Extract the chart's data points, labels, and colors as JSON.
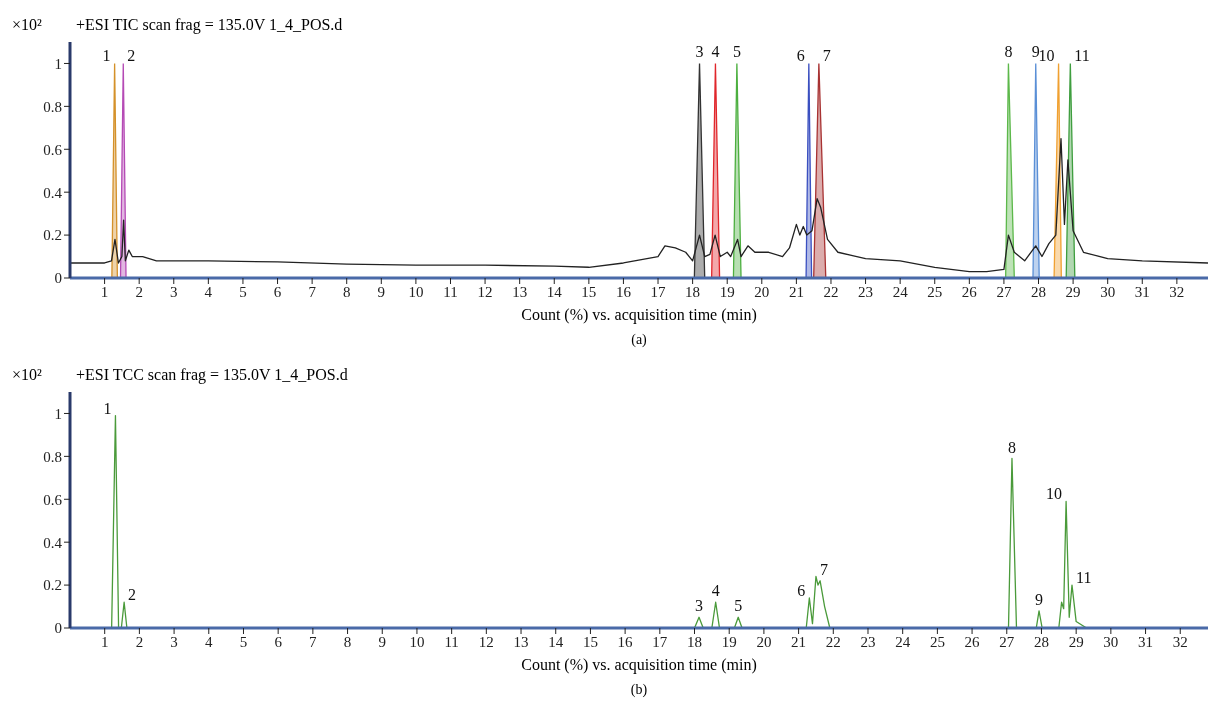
{
  "chart_data": [
    {
      "type": "line",
      "title": "+ESI TIC scan frag = 135.0V 1_4_POS.d",
      "xlabel": "Count (%) vs. acquisition time (min)",
      "ylabel": "×10²",
      "xlim": [
        0,
        32.9
      ],
      "ylim": [
        0,
        1.1
      ],
      "xticks": [
        1,
        2,
        3,
        4,
        5,
        6,
        7,
        8,
        9,
        10,
        11,
        12,
        13,
        14,
        15,
        16,
        17,
        18,
        19,
        20,
        21,
        22,
        23,
        24,
        25,
        26,
        27,
        28,
        29,
        30,
        31,
        32
      ],
      "yticks": [
        0,
        0.2,
        0.4,
        0.6,
        0.8,
        1
      ],
      "series": [
        {
          "color": "#222222",
          "x": [
            0,
            1.0,
            1.2,
            1.3,
            1.4,
            1.5,
            1.55,
            1.6,
            1.7,
            1.8,
            2.1,
            2.5,
            4,
            6,
            8,
            10,
            12,
            14,
            15,
            16,
            17,
            17.2,
            17.5,
            17.8,
            18.0,
            18.2,
            18.35,
            18.5,
            18.65,
            18.8,
            19.0,
            19.1,
            19.3,
            19.4,
            19.6,
            19.8,
            20.2,
            20.6,
            20.8,
            21.0,
            21.1,
            21.2,
            21.3,
            21.45,
            21.6,
            21.7,
            21.9,
            22.2,
            23,
            24,
            25,
            26,
            26.5,
            27.0,
            27.13,
            27.3,
            27.6,
            27.92,
            28.1,
            28.3,
            28.5,
            28.65,
            28.75,
            28.85,
            29.0,
            29.3,
            30,
            31,
            32.9
          ],
          "values": [
            0.07,
            0.07,
            0.08,
            0.18,
            0.07,
            0.1,
            0.27,
            0.08,
            0.13,
            0.1,
            0.1,
            0.08,
            0.08,
            0.075,
            0.065,
            0.06,
            0.06,
            0.055,
            0.05,
            0.07,
            0.1,
            0.15,
            0.14,
            0.12,
            0.08,
            0.2,
            0.1,
            0.11,
            0.2,
            0.1,
            0.12,
            0.1,
            0.18,
            0.1,
            0.15,
            0.12,
            0.12,
            0.1,
            0.14,
            0.25,
            0.2,
            0.24,
            0.2,
            0.22,
            0.37,
            0.33,
            0.18,
            0.12,
            0.09,
            0.08,
            0.05,
            0.03,
            0.03,
            0.04,
            0.2,
            0.12,
            0.08,
            0.15,
            0.1,
            0.16,
            0.2,
            0.65,
            0.25,
            0.55,
            0.22,
            0.12,
            0.09,
            0.08,
            0.07
          ]
        },
        {
          "type": "area",
          "color": "#d4912a",
          "x": [
            1.21,
            1.29,
            1.37
          ],
          "values": [
            0,
            1,
            0
          ]
        },
        {
          "type": "area",
          "color": "#b54ab5",
          "x": [
            1.46,
            1.54,
            1.62
          ],
          "values": [
            0,
            1,
            0
          ]
        },
        {
          "type": "area",
          "color": "#333333",
          "x": [
            18.05,
            18.2,
            18.35
          ],
          "values": [
            0,
            1,
            0
          ]
        },
        {
          "type": "area",
          "color": "#e0262b",
          "x": [
            18.55,
            18.66,
            18.78
          ],
          "values": [
            0,
            1,
            0
          ]
        },
        {
          "type": "area",
          "color": "#4caf3f",
          "x": [
            19.18,
            19.28,
            19.4
          ],
          "values": [
            0,
            1,
            0
          ]
        },
        {
          "type": "area",
          "color": "#3a4fc0",
          "x": [
            21.28,
            21.36,
            21.44
          ],
          "values": [
            0,
            1,
            0
          ]
        },
        {
          "type": "area",
          "color": "#a83232",
          "x": [
            21.5,
            21.65,
            21.85
          ],
          "values": [
            0,
            1,
            0
          ]
        },
        {
          "type": "area",
          "color": "#5cb84a",
          "x": [
            27.05,
            27.13,
            27.3
          ],
          "values": [
            0,
            1,
            0
          ]
        },
        {
          "type": "area",
          "color": "#5a8fd6",
          "x": [
            27.84,
            27.92,
            28.02
          ],
          "values": [
            0,
            1,
            0
          ]
        },
        {
          "type": "area",
          "color": "#f0a030",
          "x": [
            28.45,
            28.58,
            28.66
          ],
          "values": [
            0,
            1,
            0
          ]
        },
        {
          "type": "area",
          "color": "#3f9e3f",
          "x": [
            28.8,
            28.92,
            29.05
          ],
          "values": [
            0,
            1,
            0
          ]
        }
      ],
      "annotations": [
        {
          "text": "1",
          "x": 1.29,
          "y": 1
        },
        {
          "text": "2",
          "x": 1.54,
          "y": 1
        },
        {
          "text": "3",
          "x": 18.2,
          "y": 1
        },
        {
          "text": "4",
          "x": 18.66,
          "y": 1
        },
        {
          "text": "5",
          "x": 19.28,
          "y": 1
        },
        {
          "text": "6",
          "x": 21.36,
          "y": 1
        },
        {
          "text": "7",
          "x": 21.65,
          "y": 1
        },
        {
          "text": "8",
          "x": 27.13,
          "y": 1
        },
        {
          "text": "9",
          "x": 27.92,
          "y": 1
        },
        {
          "text": "10",
          "x": 28.58,
          "y": 1
        },
        {
          "text": "11",
          "x": 28.92,
          "y": 1
        },
        "(a)"
      ]
    },
    {
      "type": "line",
      "title": "+ESI TCC scan frag = 135.0V 1_4_POS.d",
      "xlabel": "Count (%) vs. acquisition time (min)",
      "ylabel": "×10²",
      "xlim": [
        0,
        32.8
      ],
      "ylim": [
        0,
        1.1
      ],
      "xticks": [
        1,
        2,
        3,
        4,
        5,
        6,
        7,
        8,
        9,
        10,
        11,
        12,
        13,
        14,
        15,
        16,
        17,
        18,
        19,
        20,
        21,
        22,
        23,
        24,
        25,
        26,
        27,
        28,
        29,
        30,
        31,
        32
      ],
      "yticks": [
        0,
        0.2,
        0.4,
        0.6,
        0.8,
        1
      ],
      "series": [
        {
          "color": "#4a9a3a",
          "x": [
            1.2,
            1.31,
            1.4,
            1.48,
            1.56,
            1.64,
            18.0,
            18.13,
            18.25,
            18.5,
            18.61,
            18.72,
            19.15,
            19.26,
            19.37,
            21.22,
            21.31,
            21.4,
            21.5,
            21.56,
            21.62,
            21.75,
            21.9,
            27.05,
            27.15,
            27.28,
            27.85,
            27.93,
            28.02,
            28.5,
            28.58,
            28.64,
            28.71,
            28.8,
            28.88,
            29.0,
            29.3
          ],
          "values": [
            0,
            0.99,
            0,
            0,
            0.12,
            0,
            0,
            0.05,
            0,
            0,
            0.12,
            0,
            0,
            0.05,
            0,
            0,
            0.14,
            0.02,
            0.24,
            0.2,
            0.22,
            0.1,
            0,
            0,
            0.79,
            0,
            0,
            0.08,
            0,
            0,
            0.12,
            0.09,
            0.59,
            0.05,
            0.2,
            0.03,
            0
          ]
        }
      ],
      "annotations": [
        {
          "text": "1",
          "x": 1.31,
          "y": 0.99
        },
        {
          "text": "2",
          "x": 1.56,
          "y": 0.12
        },
        {
          "text": "3",
          "x": 18.13,
          "y": 0.05
        },
        {
          "text": "4",
          "x": 18.61,
          "y": 0.12
        },
        {
          "text": "5",
          "x": 19.26,
          "y": 0.05
        },
        {
          "text": "6",
          "x": 21.31,
          "y": 0.14
        },
        {
          "text": "7",
          "x": 21.5,
          "y": 0.24
        },
        {
          "text": "8",
          "x": 27.15,
          "y": 0.79
        },
        {
          "text": "9",
          "x": 27.93,
          "y": 0.08
        },
        {
          "text": "10",
          "x": 28.71,
          "y": 0.59
        },
        {
          "text": "11",
          "x": 28.88,
          "y": 0.2
        },
        "(b)"
      ]
    }
  ]
}
